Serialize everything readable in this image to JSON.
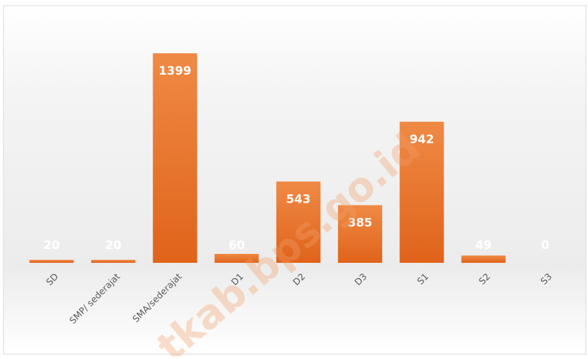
{
  "chart_data": {
    "type": "bar",
    "categories": [
      "SD",
      "SMP/ sederajat",
      "SMA/sederajat",
      "D1",
      "D2",
      "D3",
      "S1",
      "S2",
      "S3"
    ],
    "values": [
      20,
      20,
      1399,
      60,
      543,
      385,
      942,
      49,
      0
    ],
    "color": "#ea7426",
    "watermark": "tkab.bps.go.id"
  }
}
